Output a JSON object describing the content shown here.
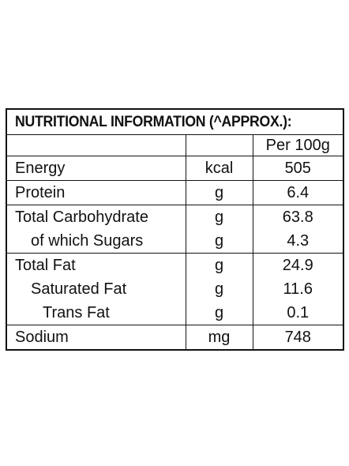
{
  "label": {
    "title": "NUTRITIONAL INFORMATION (^APPROX.):",
    "header": {
      "name": "",
      "unit": "",
      "value": "Per 100g"
    },
    "rows": [
      {
        "name": "Energy",
        "unit": "kcal",
        "value": "505"
      },
      {
        "name": "Protein",
        "unit": "g",
        "value": "6.4"
      },
      {
        "name": "Total Carbohydrate",
        "unit": "g",
        "value": "63.8"
      },
      {
        "name": "of which Sugars",
        "unit": "g",
        "value": "4.3"
      },
      {
        "name": "Total Fat",
        "unit": "g",
        "value": "24.9"
      },
      {
        "name": "Saturated Fat",
        "unit": "g",
        "value": "11.6"
      },
      {
        "name": "Trans Fat",
        "unit": "g",
        "value": "0.1"
      },
      {
        "name": "Sodium",
        "unit": "mg",
        "value": "748"
      }
    ]
  }
}
